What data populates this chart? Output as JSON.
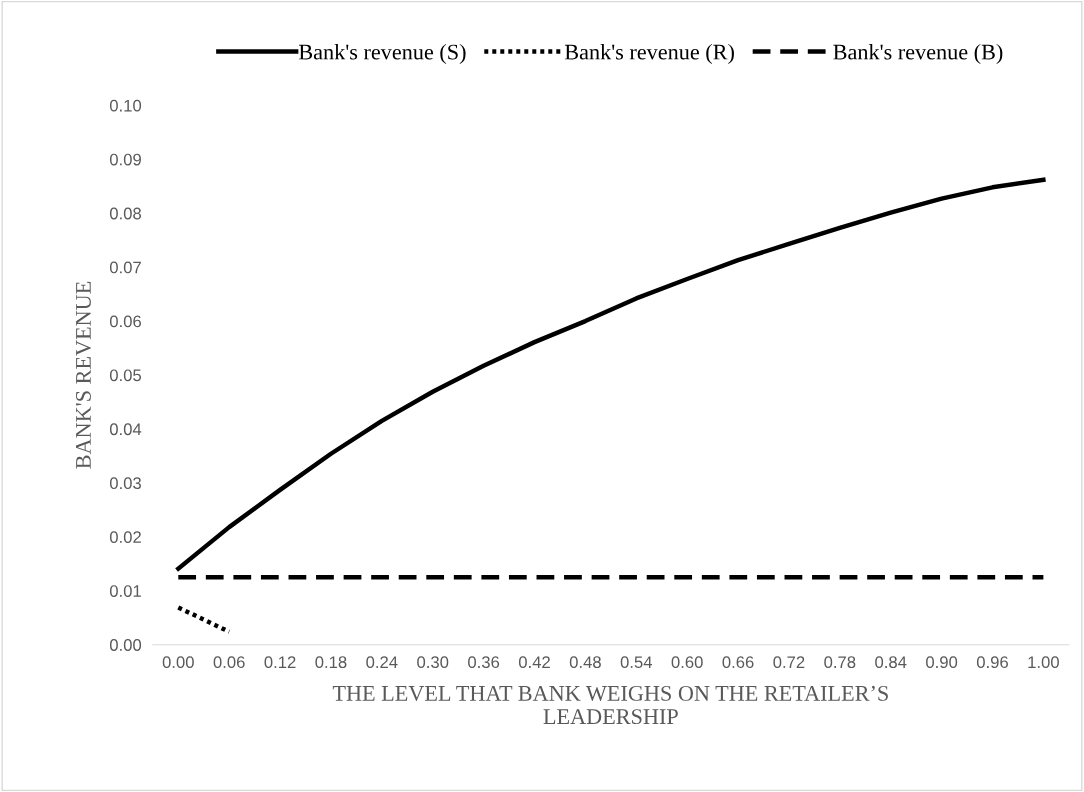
{
  "chart_data": {
    "type": "line",
    "xlabel": "THE LEVEL THAT BANK WEIGHS ON THE RETAILER’S\nLEADERSHIP",
    "ylabel": "BANK'S REVENUE",
    "categories": [
      "0.00",
      "0.06",
      "0.12",
      "0.18",
      "0.24",
      "0.30",
      "0.36",
      "0.42",
      "0.48",
      "0.54",
      "0.60",
      "0.66",
      "0.72",
      "0.78",
      "0.84",
      "0.90",
      "0.96",
      "1.00"
    ],
    "series": [
      {
        "name": "Bank's revenue (S)",
        "color": "#000000",
        "line_style": "solid",
        "values": [
          0.0141,
          0.0218,
          0.0287,
          0.0354,
          0.0415,
          0.0469,
          0.0517,
          0.0561,
          0.06,
          0.0642,
          0.0678,
          0.0713,
          0.0743,
          0.0773,
          0.0801,
          0.0827,
          0.0848,
          0.0862
        ]
      },
      {
        "name": "Bank's revenue (R)",
        "color": "#000000",
        "line_style": "dotted",
        "values": [
          0.0069,
          0.0024,
          null,
          null,
          null,
          null,
          null,
          null,
          null,
          null,
          null,
          null,
          null,
          null,
          null,
          null,
          null,
          null
        ]
      },
      {
        "name": "Bank's revenue (B)",
        "color": "#000000",
        "line_style": "dashed",
        "values": [
          0.0125,
          0.0125,
          0.0125,
          0.0125,
          0.0125,
          0.0125,
          0.0125,
          0.0125,
          0.0125,
          0.0125,
          0.0125,
          0.0125,
          0.0125,
          0.0125,
          0.0125,
          0.0125,
          0.0125,
          0.0125
        ]
      }
    ],
    "ylim": [
      0,
      0.1
    ],
    "yticks": [
      {
        "value": 0,
        "label": "0.00"
      },
      {
        "value": 0.01,
        "label": "0.01"
      },
      {
        "value": 0.02,
        "label": "0.02"
      },
      {
        "value": 0.03,
        "label": "0.03"
      },
      {
        "value": 0.04,
        "label": "0.04"
      },
      {
        "value": 0.05,
        "label": "0.05"
      },
      {
        "value": 0.06,
        "label": "0.06"
      },
      {
        "value": 0.07,
        "label": "0.07"
      },
      {
        "value": 0.08,
        "label": "0.08"
      },
      {
        "value": 0.09,
        "label": "0.09"
      },
      {
        "value": 0.1,
        "label": "0.10"
      }
    ],
    "grid": false,
    "legend": "top",
    "marker": "none"
  }
}
